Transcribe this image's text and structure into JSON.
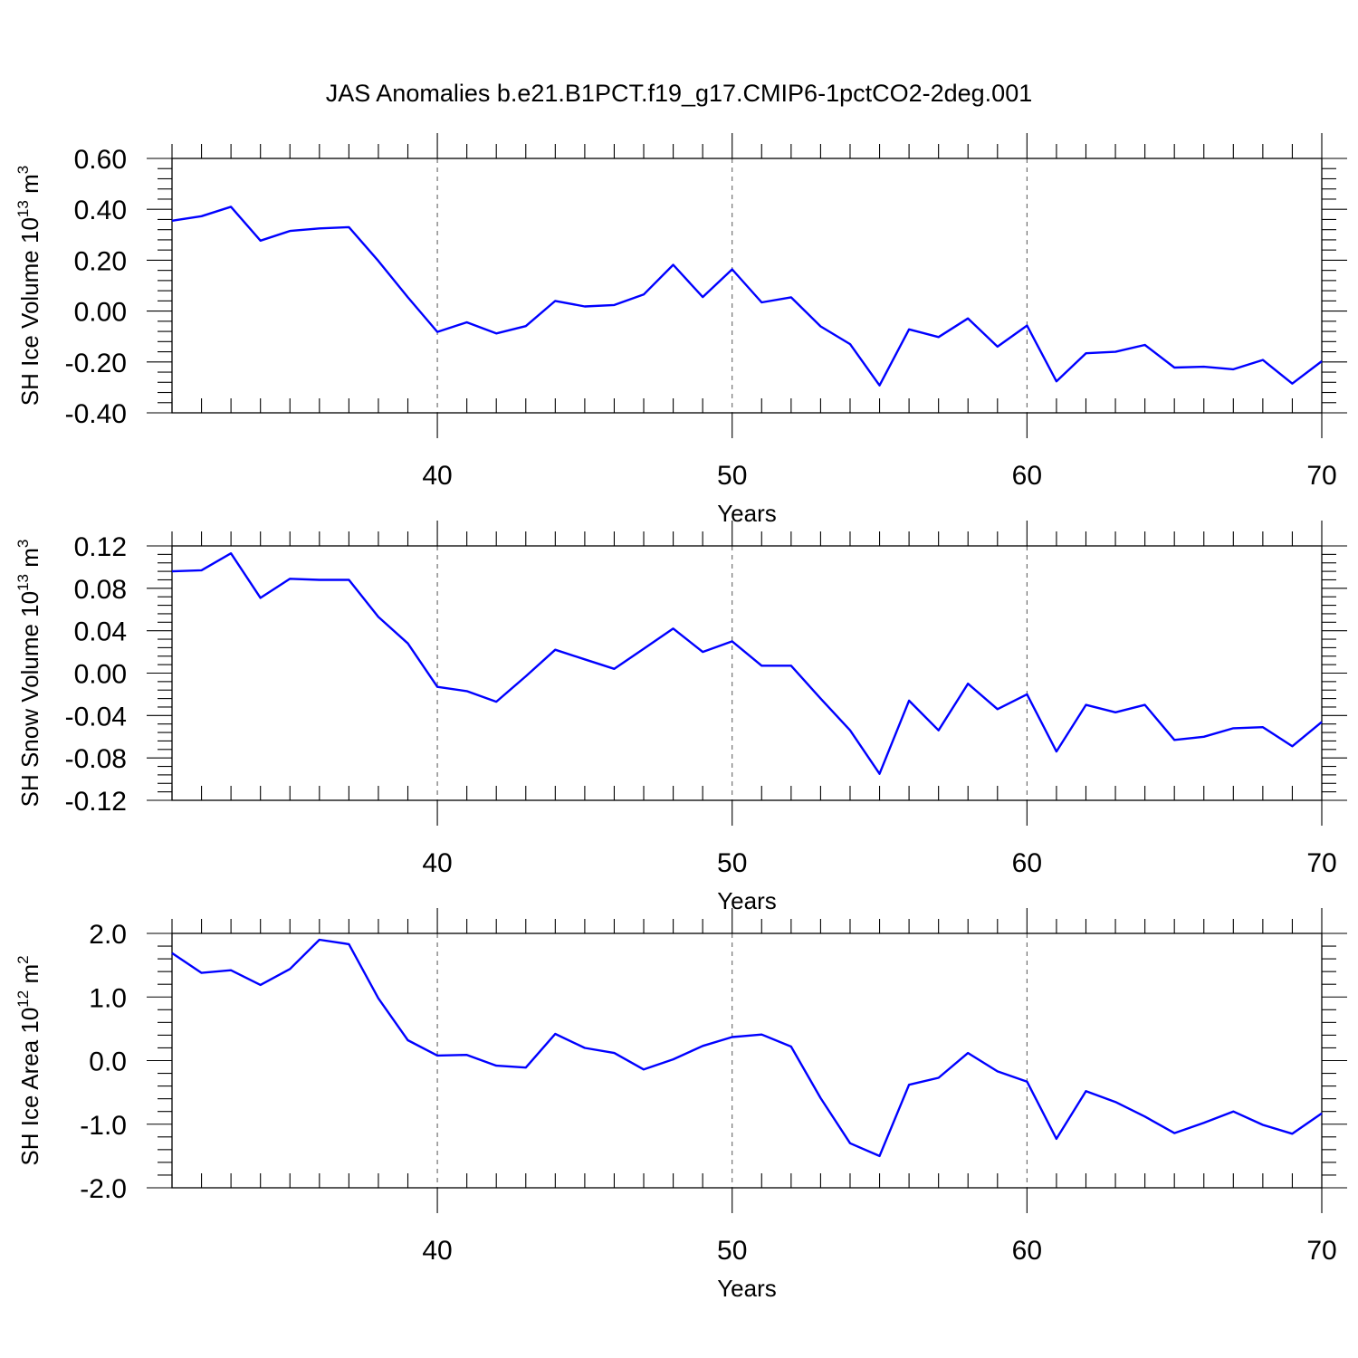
{
  "figure": {
    "title": "JAS Anomalies b.e21.B1PCT.f19_g17.CMIP6-1pctCO2-2deg.001"
  },
  "chart_data": [
    {
      "type": "line",
      "xlabel": "Years",
      "ylabel": "SH Ice Volume 10",
      "ylabel_exp": "13",
      "ylabel_unit": "m",
      "ylabel_unit_exp": "3",
      "xlim": [
        31,
        70
      ],
      "ylim": [
        -0.4,
        0.6
      ],
      "xticks": [
        40,
        50,
        60,
        70
      ],
      "yticks": [
        -0.4,
        -0.2,
        0.0,
        0.2,
        0.4,
        0.6
      ],
      "ytick_labels": [
        "-0.40",
        "-0.20",
        "0.00",
        "0.20",
        "0.40",
        "0.60"
      ],
      "x": [
        31,
        32,
        33,
        34,
        35,
        36,
        37,
        38,
        39,
        40,
        41,
        42,
        43,
        44,
        45,
        46,
        47,
        48,
        49,
        50,
        51,
        52,
        53,
        54,
        55,
        56,
        57,
        58,
        59,
        60,
        61,
        62,
        63,
        64,
        65,
        66,
        67,
        68,
        69,
        70
      ],
      "series": [
        {
          "color": "#0000ff",
          "values": [
            0.355,
            0.373,
            0.41,
            0.277,
            0.315,
            0.325,
            0.33,
            0.197,
            0.054,
            -0.082,
            -0.044,
            -0.088,
            -0.059,
            0.04,
            0.018,
            0.024,
            0.065,
            0.182,
            0.055,
            0.164,
            0.034,
            0.054,
            -0.06,
            -0.13,
            -0.292,
            -0.072,
            -0.102,
            -0.029,
            -0.14,
            -0.057,
            -0.276,
            -0.166,
            -0.16,
            -0.133,
            -0.222,
            -0.219,
            -0.229,
            -0.192,
            -0.285,
            -0.197
          ]
        }
      ]
    },
    {
      "type": "line",
      "xlabel": "Years",
      "ylabel": "SH Snow Volume 10",
      "ylabel_exp": "13",
      "ylabel_unit": "m",
      "ylabel_unit_exp": "3",
      "xlim": [
        31,
        70
      ],
      "ylim": [
        -0.12,
        0.12
      ],
      "xticks": [
        40,
        50,
        60,
        70
      ],
      "yticks": [
        -0.12,
        -0.08,
        -0.04,
        0.0,
        0.04,
        0.08,
        0.12
      ],
      "ytick_labels": [
        "-0.12",
        "-0.08",
        "-0.04",
        "0.00",
        "0.04",
        "0.08",
        "0.12"
      ],
      "x": [
        31,
        32,
        33,
        34,
        35,
        36,
        37,
        38,
        39,
        40,
        41,
        42,
        43,
        44,
        45,
        46,
        47,
        48,
        49,
        50,
        51,
        52,
        53,
        54,
        55,
        56,
        57,
        58,
        59,
        60,
        61,
        62,
        63,
        64,
        65,
        66,
        67,
        68,
        69,
        70
      ],
      "series": [
        {
          "color": "#0000ff",
          "values": [
            0.096,
            0.097,
            0.113,
            0.071,
            0.089,
            0.088,
            0.088,
            0.053,
            0.028,
            -0.013,
            -0.017,
            -0.027,
            -0.003,
            0.022,
            0.013,
            0.004,
            0.023,
            0.042,
            0.02,
            0.03,
            0.007,
            0.007,
            -0.024,
            -0.054,
            -0.095,
            -0.026,
            -0.054,
            -0.01,
            -0.034,
            -0.02,
            -0.074,
            -0.03,
            -0.037,
            -0.03,
            -0.063,
            -0.06,
            -0.052,
            -0.051,
            -0.069,
            -0.046
          ]
        }
      ]
    },
    {
      "type": "line",
      "xlabel": "Years",
      "ylabel": "SH Ice Area 10",
      "ylabel_exp": "12",
      "ylabel_unit": "m",
      "ylabel_unit_exp": "2",
      "xlim": [
        31,
        70
      ],
      "ylim": [
        -2.0,
        2.0
      ],
      "xticks": [
        40,
        50,
        60,
        70
      ],
      "yticks": [
        -2.0,
        -1.0,
        0.0,
        1.0,
        2.0
      ],
      "ytick_labels": [
        "-2.0",
        "-1.0",
        "0.0",
        "1.0",
        "2.0"
      ],
      "x": [
        31,
        32,
        33,
        34,
        35,
        36,
        37,
        38,
        39,
        40,
        41,
        42,
        43,
        44,
        45,
        46,
        47,
        48,
        49,
        50,
        51,
        52,
        53,
        54,
        55,
        56,
        57,
        58,
        59,
        60,
        61,
        62,
        63,
        64,
        65,
        66,
        67,
        68,
        69,
        70
      ],
      "series": [
        {
          "color": "#0000ff",
          "values": [
            1.69,
            1.38,
            1.42,
            1.19,
            1.44,
            1.9,
            1.83,
            0.98,
            0.32,
            0.08,
            0.09,
            -0.08,
            -0.11,
            0.42,
            0.2,
            0.12,
            -0.14,
            0.02,
            0.23,
            0.37,
            0.41,
            0.22,
            -0.59,
            -1.3,
            -1.5,
            -0.38,
            -0.27,
            0.12,
            -0.17,
            -0.33,
            -1.23,
            -0.48,
            -0.65,
            -0.88,
            -1.14,
            -0.98,
            -0.8,
            -1.01,
            -1.15,
            -0.83
          ]
        }
      ]
    }
  ]
}
